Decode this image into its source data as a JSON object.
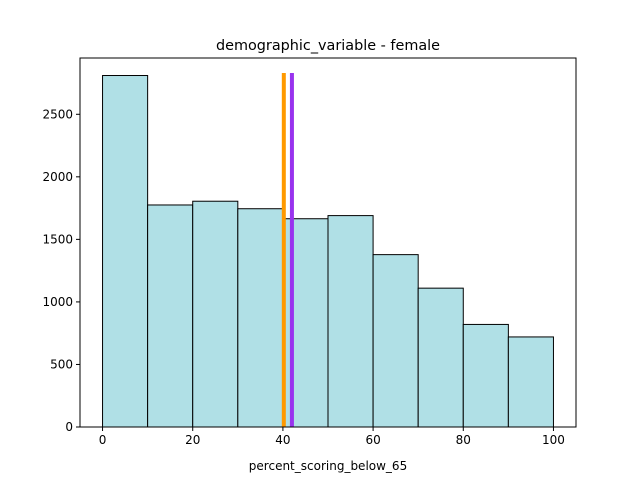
{
  "chart_data": {
    "type": "bar",
    "title": "demographic_variable - female",
    "xlabel": "percent_scoring_below_65",
    "ylabel": "",
    "bins": [
      {
        "x0": 0,
        "x1": 10,
        "value": 2810
      },
      {
        "x0": 10,
        "x1": 20,
        "value": 1775
      },
      {
        "x0": 20,
        "x1": 30,
        "value": 1805
      },
      {
        "x0": 30,
        "x1": 40,
        "value": 1745
      },
      {
        "x0": 40,
        "x1": 50,
        "value": 1665
      },
      {
        "x0": 50,
        "x1": 60,
        "value": 1690
      },
      {
        "x0": 60,
        "x1": 70,
        "value": 1378
      },
      {
        "x0": 70,
        "x1": 80,
        "value": 1110
      },
      {
        "x0": 80,
        "x1": 90,
        "value": 820
      },
      {
        "x0": 90,
        "x1": 100,
        "value": 720
      }
    ],
    "xlim": [
      -5,
      105
    ],
    "ylim": [
      0,
      2950
    ],
    "xticks": [
      0,
      20,
      40,
      60,
      80,
      100
    ],
    "yticks": [
      0,
      500,
      1000,
      1500,
      2000,
      2500
    ],
    "vlines": [
      {
        "x": 40.2,
        "color": "#ff9900"
      },
      {
        "x": 42.0,
        "color": "#9933ee"
      }
    ],
    "bar_color": "#b0e0e6",
    "edge_color": "#000000",
    "grid": false,
    "legend": "none"
  }
}
